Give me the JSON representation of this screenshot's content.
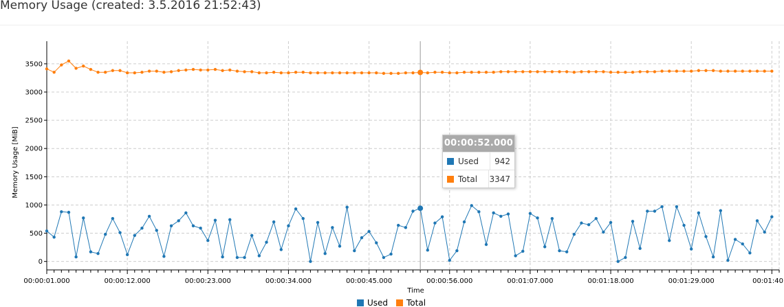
{
  "title": "Memory Usage (created: 3.5.2016 21:52:43)",
  "colors": {
    "used": "#1f77b4",
    "total": "#ff7f0e",
    "grid": "#cccccc"
  },
  "tooltip": {
    "time": "00:00:52.000",
    "rows": [
      {
        "name": "Used",
        "value": "942",
        "color": "#1f77b4"
      },
      {
        "name": "Total",
        "value": "3347",
        "color": "#ff7f0e"
      }
    ]
  },
  "chart_data": {
    "type": "line",
    "xlabel": "Time",
    "ylabel": "Memory Usage [MiB]",
    "ylim": [
      -150,
      3900
    ],
    "yticks": [
      0,
      500,
      1000,
      1500,
      2000,
      2500,
      3000,
      3500
    ],
    "xlim_seconds": [
      1,
      101
    ],
    "x_tick_labels": [
      "00:00:01.000",
      "00:00:12.000",
      "00:00:23.000",
      "00:00:34.000",
      "00:00:45.000",
      "00:00:56.000",
      "00:01:07.000",
      "00:01:18.000",
      "00:01:29.000",
      "00:01:40"
    ],
    "x_start": "00:00:01.000",
    "x_step_seconds": 1,
    "highlight_time": "00:00:52.000",
    "grid": true,
    "legend_position": "bottom",
    "series": [
      {
        "name": "Used",
        "color": "#1f77b4",
        "values": [
          540,
          430,
          880,
          870,
          80,
          770,
          170,
          140,
          480,
          760,
          510,
          120,
          460,
          590,
          800,
          550,
          90,
          630,
          720,
          860,
          630,
          590,
          370,
          730,
          80,
          740,
          70,
          70,
          460,
          100,
          340,
          700,
          210,
          630,
          930,
          760,
          0,
          690,
          140,
          600,
          270,
          960,
          190,
          420,
          530,
          330,
          70,
          130,
          640,
          600,
          890,
          942,
          200,
          680,
          790,
          20,
          190,
          700,
          990,
          880,
          300,
          860,
          800,
          840,
          100,
          180,
          850,
          770,
          260,
          760,
          190,
          170,
          480,
          680,
          650,
          760,
          520,
          690,
          0,
          70,
          710,
          230,
          890,
          890,
          970,
          370,
          970,
          640,
          220,
          860,
          440,
          80,
          900,
          20,
          390,
          310,
          150,
          720,
          520,
          790
        ]
      },
      {
        "name": "Total",
        "color": "#ff7f0e",
        "values": [
          3410,
          3350,
          3480,
          3550,
          3420,
          3460,
          3400,
          3350,
          3350,
          3380,
          3380,
          3340,
          3340,
          3350,
          3370,
          3370,
          3350,
          3360,
          3380,
          3390,
          3400,
          3390,
          3390,
          3400,
          3380,
          3390,
          3370,
          3360,
          3360,
          3340,
          3340,
          3350,
          3340,
          3340,
          3350,
          3350,
          3340,
          3340,
          3340,
          3340,
          3340,
          3340,
          3340,
          3340,
          3340,
          3340,
          3330,
          3330,
          3330,
          3340,
          3340,
          3347,
          3340,
          3350,
          3350,
          3340,
          3340,
          3350,
          3350,
          3350,
          3350,
          3350,
          3360,
          3360,
          3360,
          3360,
          3360,
          3360,
          3360,
          3360,
          3360,
          3360,
          3350,
          3360,
          3360,
          3360,
          3360,
          3350,
          3350,
          3350,
          3350,
          3360,
          3360,
          3360,
          3370,
          3370,
          3370,
          3370,
          3370,
          3380,
          3380,
          3380,
          3370,
          3370,
          3370,
          3370,
          3370,
          3370,
          3370,
          3370
        ]
      }
    ]
  }
}
